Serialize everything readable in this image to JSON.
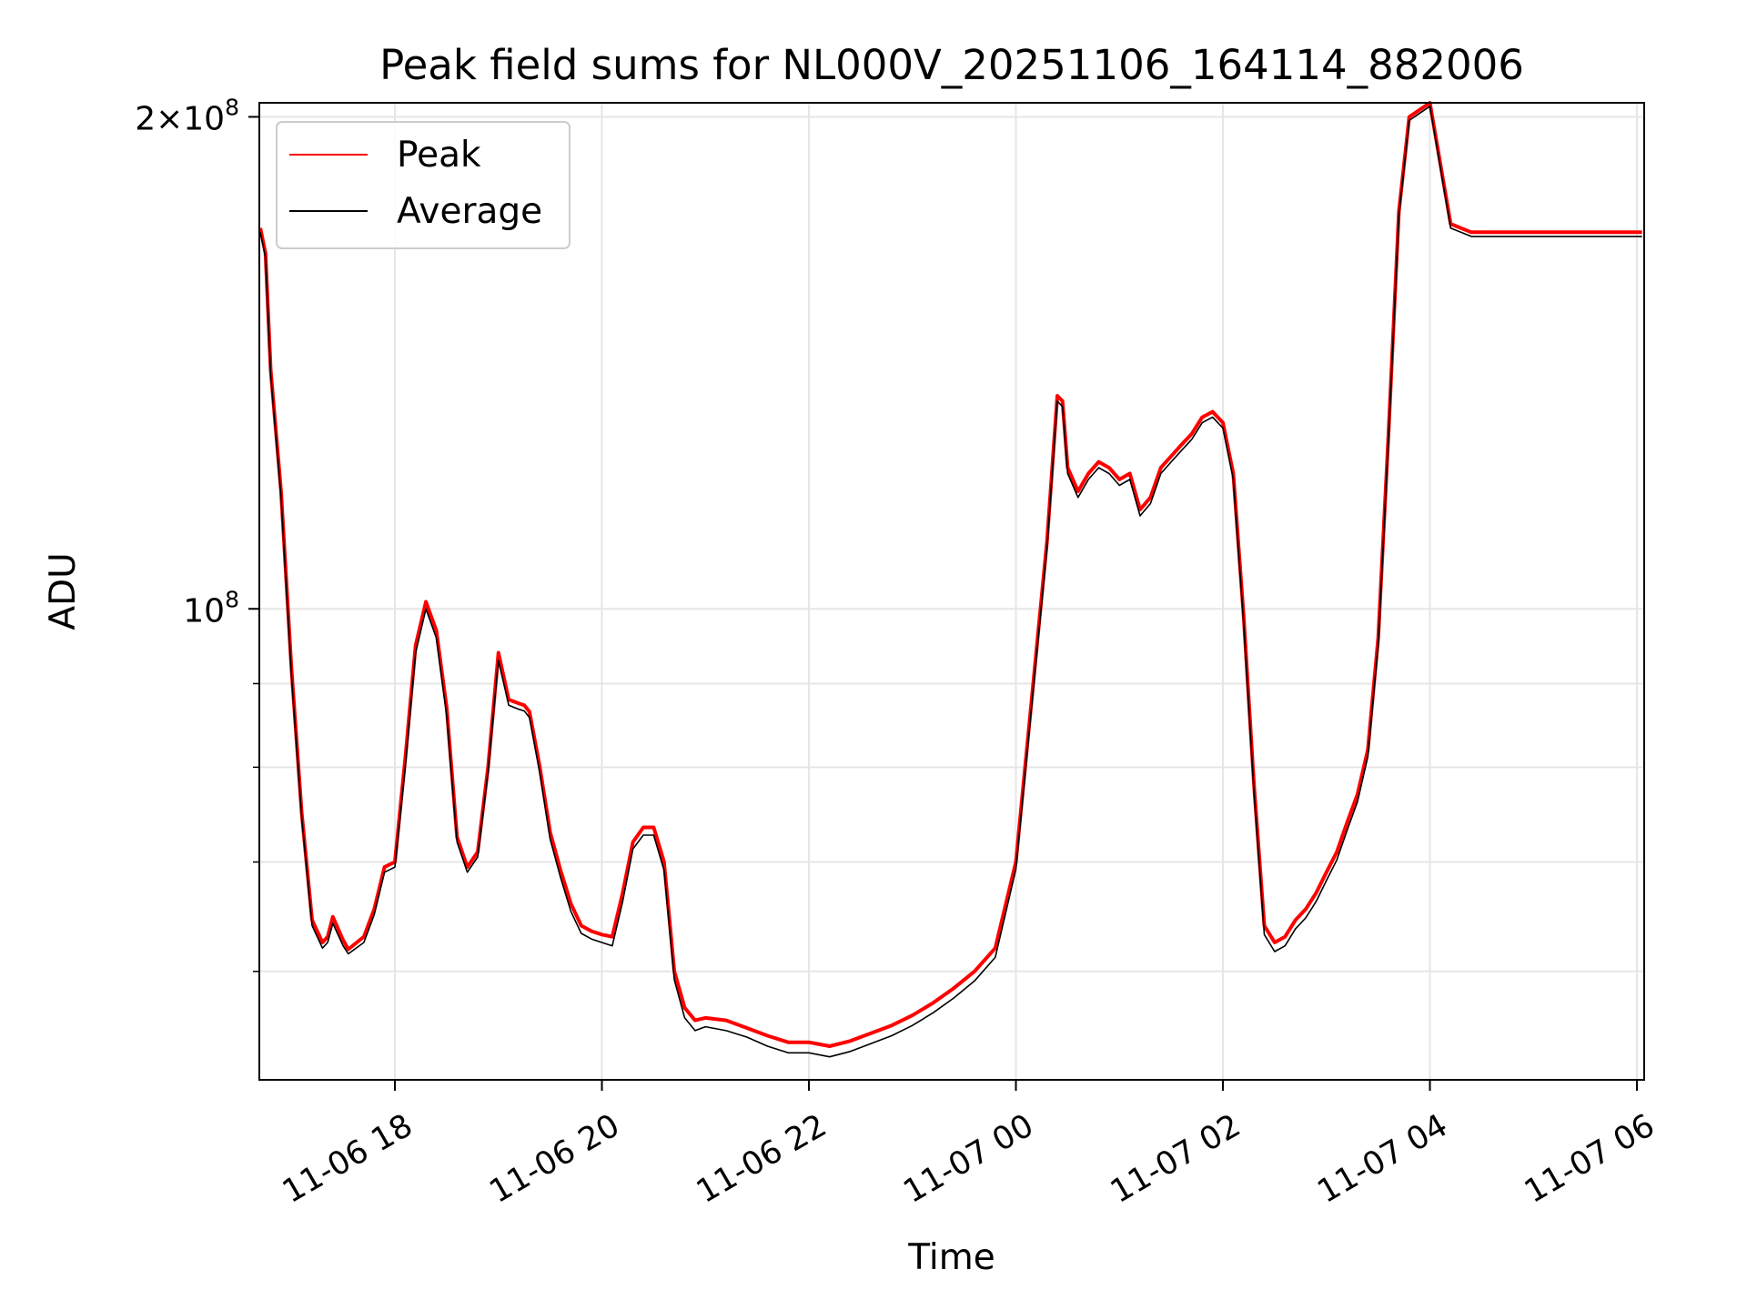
{
  "chart_data": {
    "type": "line",
    "title": "Peak field sums for NL000V_20251106_164114_882006",
    "xlabel": "Time",
    "ylabel": "ADU",
    "yscale": "log",
    "xlim": [
      16.69,
      30.07
    ],
    "ylim": [
      51500000,
      204000000
    ],
    "grid": true,
    "legend": "top-left",
    "x_ticks": [
      {
        "value": 18,
        "label": "11-06 18"
      },
      {
        "value": 20,
        "label": "11-06 20"
      },
      {
        "value": 22,
        "label": "11-06 22"
      },
      {
        "value": 24,
        "label": "11-07 00"
      },
      {
        "value": 26,
        "label": "11-07 02"
      },
      {
        "value": 28,
        "label": "11-07 04"
      },
      {
        "value": 30,
        "label": "11-07 06"
      }
    ],
    "y_major_ticks": [
      {
        "value": 100000000,
        "base": "10",
        "exp": "8",
        "prefix": ""
      },
      {
        "value": 200000000,
        "base": "10",
        "exp": "8",
        "prefix": "2×"
      }
    ],
    "y_minor_ticks": [
      60000000,
      70000000,
      80000000,
      90000000
    ],
    "x_unit": "hours since 2025-11-06 00:00",
    "series": [
      {
        "name": "Peak",
        "color": "#ff0000",
        "x": [
          16.7,
          16.75,
          16.8,
          16.9,
          17.0,
          17.1,
          17.2,
          17.3,
          17.35,
          17.4,
          17.5,
          17.55,
          17.7,
          17.8,
          17.9,
          18.0,
          18.1,
          18.2,
          18.3,
          18.4,
          18.5,
          18.6,
          18.7,
          18.8,
          18.9,
          19.0,
          19.1,
          19.2,
          19.25,
          19.3,
          19.4,
          19.5,
          19.6,
          19.7,
          19.8,
          19.9,
          20.0,
          20.1,
          20.2,
          20.3,
          20.4,
          20.5,
          20.6,
          20.7,
          20.8,
          20.9,
          21.0,
          21.2,
          21.4,
          21.6,
          21.8,
          22.0,
          22.2,
          22.4,
          22.6,
          22.8,
          23.0,
          23.2,
          23.4,
          23.6,
          23.8,
          24.0,
          24.3,
          24.4,
          24.45,
          24.5,
          24.6,
          24.7,
          24.8,
          24.9,
          25.0,
          25.1,
          25.2,
          25.3,
          25.4,
          25.5,
          25.6,
          25.7,
          25.8,
          25.9,
          26.0,
          26.1,
          26.2,
          26.3,
          26.4,
          26.5,
          26.6,
          26.7,
          26.8,
          26.9,
          27.0,
          27.1,
          27.2,
          27.3,
          27.4,
          27.5,
          27.6,
          27.7,
          27.8,
          28.0,
          28.2,
          28.4,
          28.6,
          28.8,
          29.0,
          29.2,
          29.4,
          29.6,
          29.8,
          29.9,
          29.95,
          30.0,
          30.05
        ],
        "values": [
          171000000,
          165000000,
          140000000,
          118000000,
          92000000,
          75000000,
          64500000,
          62500000,
          63000000,
          64800000,
          62700000,
          61900000,
          63000000,
          65500000,
          69500000,
          70000000,
          81000000,
          95000000,
          101000000,
          97000000,
          87000000,
          72500000,
          69500000,
          71000000,
          80000000,
          94000000,
          88000000,
          87500000,
          87300000,
          86500000,
          80000000,
          73000000,
          69200000,
          66000000,
          64000000,
          63500000,
          63200000,
          63000000,
          67000000,
          72000000,
          73500000,
          73500000,
          70000000,
          60000000,
          57000000,
          56000000,
          56200000,
          56000000,
          55400000,
          54800000,
          54300000,
          54300000,
          54000000,
          54400000,
          55000000,
          55600000,
          56400000,
          57400000,
          58600000,
          60000000,
          62000000,
          70000000,
          110000000,
          135000000,
          134000000,
          122000000,
          118000000,
          121000000,
          123000000,
          122000000,
          120000000,
          121000000,
          115000000,
          117000000,
          122000000,
          124000000,
          126000000,
          128000000,
          131000000,
          132000000,
          130000000,
          121000000,
          99000000,
          78000000,
          64000000,
          62500000,
          63000000,
          64500000,
          65500000,
          67000000,
          69000000,
          71000000,
          74000000,
          77000000,
          82000000,
          96000000,
          128000000,
          175000000,
          200000000,
          204000000,
          172000000,
          170000000,
          170000000,
          170000000,
          170000000,
          170000000,
          170000000,
          170000000,
          170000000,
          170000000,
          170000000,
          170000000,
          170000000
        ]
      },
      {
        "name": "Average",
        "color": "#000000",
        "x": [
          16.7,
          16.75,
          16.8,
          16.9,
          17.0,
          17.1,
          17.2,
          17.3,
          17.35,
          17.4,
          17.5,
          17.55,
          17.7,
          17.8,
          17.9,
          18.0,
          18.1,
          18.2,
          18.3,
          18.4,
          18.5,
          18.6,
          18.7,
          18.8,
          18.9,
          19.0,
          19.1,
          19.2,
          19.25,
          19.3,
          19.4,
          19.5,
          19.6,
          19.7,
          19.8,
          19.9,
          20.0,
          20.1,
          20.2,
          20.3,
          20.4,
          20.5,
          20.6,
          20.7,
          20.8,
          20.9,
          21.0,
          21.2,
          21.4,
          21.6,
          21.8,
          22.0,
          22.2,
          22.4,
          22.6,
          22.8,
          23.0,
          23.2,
          23.4,
          23.6,
          23.8,
          24.0,
          24.3,
          24.4,
          24.45,
          24.5,
          24.6,
          24.7,
          24.8,
          24.9,
          25.0,
          25.1,
          25.2,
          25.3,
          25.4,
          25.5,
          25.6,
          25.7,
          25.8,
          25.9,
          26.0,
          26.1,
          26.2,
          26.3,
          26.4,
          26.5,
          26.6,
          26.7,
          26.8,
          26.9,
          27.0,
          27.1,
          27.2,
          27.3,
          27.4,
          27.5,
          27.6,
          27.7,
          27.8,
          28.0,
          28.2,
          28.4,
          28.6,
          28.8,
          29.0,
          29.2,
          29.4,
          29.6,
          29.8,
          29.9,
          29.95,
          30.0,
          30.05
        ],
        "values": [
          170000000,
          164000000,
          139000000,
          117000000,
          91000000,
          74500000,
          64000000,
          62000000,
          62500000,
          64200000,
          62200000,
          61500000,
          62500000,
          65000000,
          69000000,
          69500000,
          80000000,
          94000000,
          100000000,
          96000000,
          86000000,
          72000000,
          69000000,
          70500000,
          79500000,
          93000000,
          87300000,
          86800000,
          86600000,
          85800000,
          79300000,
          72300000,
          68500000,
          65300000,
          63300000,
          62800000,
          62500000,
          62200000,
          66200000,
          71300000,
          72700000,
          72700000,
          69200000,
          59300000,
          56200000,
          55200000,
          55500000,
          55200000,
          54700000,
          54000000,
          53500000,
          53500000,
          53200000,
          53600000,
          54200000,
          54800000,
          55600000,
          56600000,
          57800000,
          59200000,
          61200000,
          69300000,
          109000000,
          134000000,
          133000000,
          121000000,
          117000000,
          120000000,
          122000000,
          121000000,
          119000000,
          120000000,
          114000000,
          116000000,
          121000000,
          123000000,
          125000000,
          127000000,
          130000000,
          131000000,
          129000000,
          120000000,
          98000000,
          77200000,
          63200000,
          61700000,
          62200000,
          63700000,
          64700000,
          66200000,
          68200000,
          70200000,
          73200000,
          76200000,
          81200000,
          95000000,
          127000000,
          174000000,
          199000000,
          203000000,
          171000000,
          169000000,
          169000000,
          169000000,
          169000000,
          169000000,
          169000000,
          169000000,
          169000000,
          169000000,
          169000000,
          169000000,
          169000000
        ]
      }
    ]
  }
}
